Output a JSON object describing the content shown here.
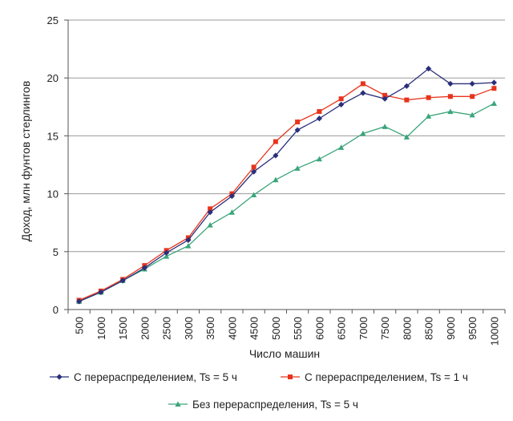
{
  "chart_data": {
    "type": "line",
    "xlabel": "Число машин",
    "ylabel": "Доход, млн фунтов стерлингов",
    "ylim": [
      0,
      25
    ],
    "yticks": [
      "0",
      "5",
      "10",
      "15",
      "20",
      "25"
    ],
    "grid": "horizontal",
    "legend_position": "bottom",
    "categories": [
      "500",
      "1000",
      "1500",
      "2000",
      "2500",
      "3000",
      "3500",
      "4000",
      "4500",
      "5000",
      "5500",
      "6000",
      "6500",
      "7000",
      "7500",
      "8000",
      "8500",
      "9000",
      "9500",
      "10000"
    ],
    "series": [
      {
        "name": "С перераспределением, Ts = 5 ч",
        "color": "#2a2f7a",
        "marker": "diamond",
        "values": [
          0.7,
          1.5,
          2.5,
          3.6,
          4.9,
          6.0,
          8.4,
          9.8,
          11.9,
          13.3,
          15.5,
          16.5,
          17.7,
          18.7,
          18.2,
          19.3,
          20.8,
          19.5,
          19.5,
          19.6
        ]
      },
      {
        "name": "С перераспределением, Ts = 1 ч",
        "color": "#e8341c",
        "marker": "square",
        "values": [
          0.8,
          1.6,
          2.6,
          3.8,
          5.1,
          6.2,
          8.7,
          10.0,
          12.3,
          14.5,
          16.2,
          17.1,
          18.2,
          19.5,
          18.5,
          18.1,
          18.3,
          18.4,
          18.4,
          19.1
        ]
      },
      {
        "name": "Без перераспределения, Ts = 5 ч",
        "color": "#3aa57a",
        "marker": "triangle",
        "values": [
          0.7,
          1.5,
          2.5,
          3.5,
          4.6,
          5.5,
          7.3,
          8.4,
          9.9,
          11.2,
          12.2,
          13.0,
          14.0,
          15.2,
          15.8,
          14.9,
          16.7,
          17.1,
          16.8,
          17.8
        ]
      }
    ]
  }
}
